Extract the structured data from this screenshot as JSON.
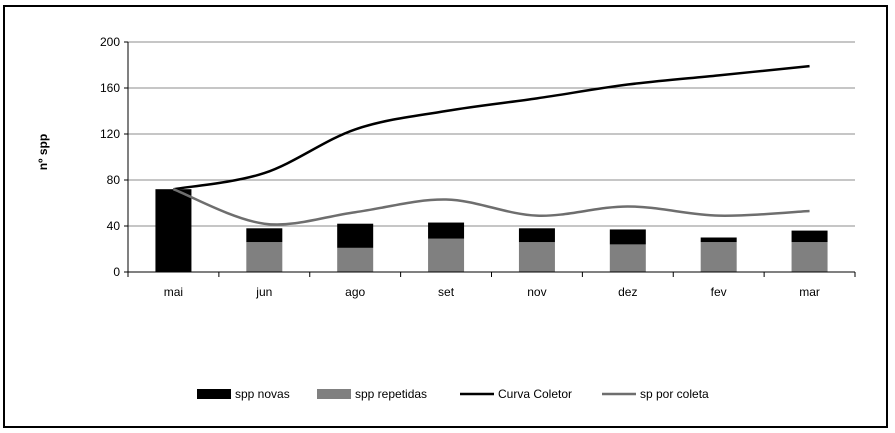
{
  "chart_data": {
    "type": "bar",
    "stacked": true,
    "title": "",
    "xlabel": "",
    "ylabel": "nº spp",
    "ylim": [
      0,
      200
    ],
    "yticks": [
      0,
      40,
      80,
      120,
      160,
      200
    ],
    "grid": true,
    "legend_position": "bottom",
    "categories": [
      "mai",
      "jun",
      "ago",
      "set",
      "nov",
      "dez",
      "fev",
      "mar"
    ],
    "series": [
      {
        "name": "spp novas",
        "kind": "bar",
        "color": "#000000",
        "values": [
          72,
          12,
          21,
          14,
          12,
          13,
          4,
          10
        ]
      },
      {
        "name": "spp repetidas",
        "kind": "bar",
        "color": "#808080",
        "values": [
          0,
          26,
          21,
          29,
          26,
          24,
          26,
          26
        ]
      },
      {
        "name": "Curva Coletor",
        "kind": "line",
        "color": "#000000",
        "values": [
          72,
          86,
          124,
          140,
          151,
          163,
          171,
          179
        ]
      },
      {
        "name": "sp por coleta",
        "kind": "line",
        "color": "#6e6e6e",
        "values": [
          72,
          42,
          52,
          63,
          49,
          57,
          49,
          53
        ]
      }
    ]
  }
}
